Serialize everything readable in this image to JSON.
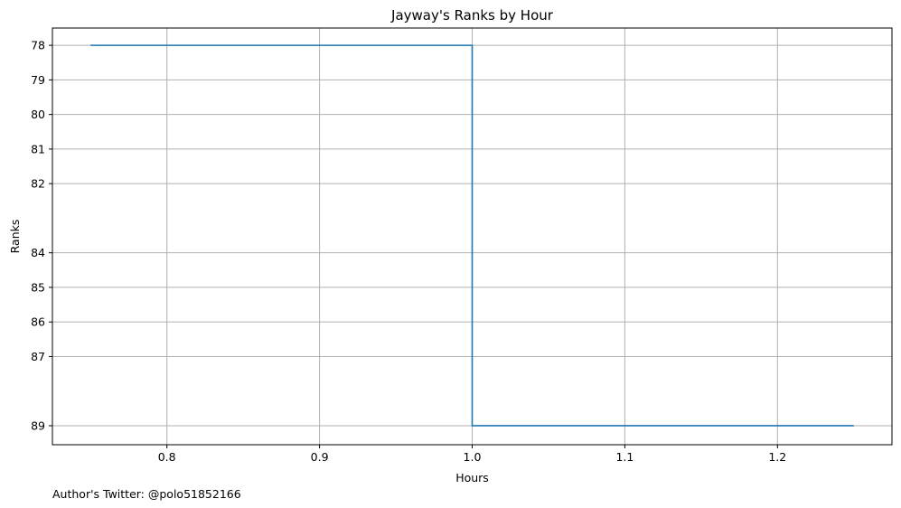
{
  "chart_data": {
    "type": "line",
    "title": "Jayway's Ranks by Hour",
    "xlabel": "Hours",
    "ylabel": "Ranks",
    "xlim": [
      0.725,
      1.275
    ],
    "ylim": [
      89.55,
      77.5
    ],
    "y_inverted": true,
    "grid": true,
    "x_ticks": [
      0.8,
      0.9,
      1.0,
      1.1,
      1.2
    ],
    "x_tick_labels": [
      "0.8",
      "0.9",
      "1.0",
      "1.1",
      "1.2"
    ],
    "y_ticks": [
      78,
      79,
      80,
      81,
      82,
      84,
      85,
      86,
      87,
      89
    ],
    "y_tick_labels": [
      "78",
      "79",
      "80",
      "81",
      "82",
      "84",
      "85",
      "86",
      "87",
      "89"
    ],
    "series": [
      {
        "step": "post",
        "x": [
          0.75,
          1.0,
          1.25
        ],
        "y": [
          78,
          89,
          89
        ],
        "color": "#1f77b4"
      }
    ]
  },
  "footer": {
    "note": "Author's Twitter: @polo51852166"
  },
  "colors": {
    "line": "#1f77b4",
    "grid": "#b0b0b0",
    "axes": "#000000"
  }
}
